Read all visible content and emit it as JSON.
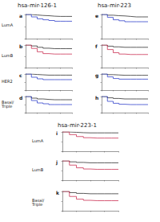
{
  "headers": [
    "hsa-mir-126-1",
    "hsa-mir-223",
    "hsa-mir-223-1"
  ],
  "row_labels": [
    "LumA",
    "LumB",
    "HER2",
    "Basal/ Triple",
    "LumA",
    "LumB",
    "Basal/Triple"
  ],
  "chart_data": [
    {
      "type": "line",
      "title": "a",
      "x": [
        0,
        25,
        50,
        75,
        100,
        125,
        150,
        175,
        200
      ],
      "xlim": [
        0,
        200
      ],
      "xticks": [
        0,
        50,
        100,
        150,
        200
      ],
      "ylim": [
        0,
        1
      ],
      "yticks": [
        0,
        0.5,
        1
      ],
      "tick_labels": false,
      "line_style": "step",
      "series": [
        {
          "color": "#333333",
          "values": [
            1,
            0.98,
            0.96,
            0.95,
            0.93,
            0.92,
            0.92,
            0.92,
            0.92
          ]
        },
        {
          "color": "#3344cc",
          "values": [
            1,
            0.9,
            0.82,
            0.78,
            0.75,
            0.72,
            0.72,
            0.72,
            0.72
          ]
        }
      ]
    },
    {
      "type": "line",
      "title": "b",
      "x": [
        0,
        25,
        50,
        75,
        100,
        125,
        150,
        175,
        200
      ],
      "xlim": [
        0,
        200
      ],
      "xticks": [
        0,
        50,
        100,
        150,
        200
      ],
      "ylim": [
        0,
        1
      ],
      "yticks": [
        0,
        0.5,
        1
      ],
      "tick_labels": false,
      "line_style": "step",
      "series": [
        {
          "color": "#333333",
          "values": [
            1,
            0.96,
            0.9,
            0.86,
            0.84,
            0.84,
            0.84,
            0.84,
            0.84
          ]
        },
        {
          "color": "#cc3355",
          "values": [
            1,
            0.85,
            0.7,
            0.62,
            0.6,
            0.6,
            0.6,
            0.6,
            0.6
          ]
        }
      ]
    },
    {
      "type": "line",
      "title": "c",
      "x": [
        0,
        25,
        50,
        75,
        100,
        125,
        150,
        175,
        200
      ],
      "xlim": [
        0,
        200
      ],
      "xticks": [
        0,
        50,
        100,
        150,
        200
      ],
      "ylim": [
        0,
        1
      ],
      "yticks": [
        0,
        0.5,
        1
      ],
      "tick_labels": false,
      "line_style": "step",
      "series": [
        {
          "color": "#333333",
          "values": [
            1,
            0.97,
            0.95,
            0.93,
            0.93,
            0.93,
            0.93,
            0.93,
            0.93
          ]
        },
        {
          "color": "#3344cc",
          "values": [
            1,
            0.8,
            0.7,
            0.65,
            0.65,
            0.65,
            0.65,
            0.65,
            0.65
          ]
        }
      ]
    },
    {
      "type": "line",
      "title": "d",
      "x": [
        0,
        25,
        50,
        75,
        100,
        125,
        150,
        175,
        200
      ],
      "xlim": [
        0,
        200
      ],
      "xticks": [
        0,
        50,
        100,
        150,
        200
      ],
      "ylim": [
        0,
        1
      ],
      "yticks": [
        0,
        0.5,
        1
      ],
      "tick_labels": false,
      "line_style": "step",
      "series": [
        {
          "color": "#333333",
          "values": [
            1,
            0.9,
            0.85,
            0.82,
            0.8,
            0.8,
            0.8,
            0.8,
            0.8
          ]
        },
        {
          "color": "#3344cc",
          "values": [
            1,
            0.75,
            0.6,
            0.55,
            0.5,
            0.5,
            0.5,
            0.5,
            0.5
          ]
        }
      ]
    },
    {
      "type": "line",
      "title": "e",
      "x": [
        0,
        25,
        50,
        75,
        100,
        125,
        150,
        175,
        200
      ],
      "xlim": [
        0,
        200
      ],
      "xticks": [
        0,
        50,
        100,
        150,
        200
      ],
      "ylim": [
        0,
        1
      ],
      "yticks": [
        0,
        0.5,
        1
      ],
      "tick_labels": false,
      "line_style": "step",
      "series": [
        {
          "color": "#333333",
          "values": [
            1,
            0.97,
            0.95,
            0.94,
            0.92,
            0.9,
            0.9,
            0.9,
            0.9
          ]
        },
        {
          "color": "#3344cc",
          "values": [
            1,
            0.88,
            0.78,
            0.74,
            0.7,
            0.7,
            0.7,
            0.7,
            0.7
          ]
        }
      ]
    },
    {
      "type": "line",
      "title": "f",
      "x": [
        0,
        25,
        50,
        75,
        100,
        125,
        150,
        175,
        200
      ],
      "xlim": [
        0,
        200
      ],
      "xticks": [
        0,
        50,
        100,
        150,
        200
      ],
      "ylim": [
        0,
        1
      ],
      "yticks": [
        0,
        0.5,
        1
      ],
      "tick_labels": false,
      "line_style": "step",
      "series": [
        {
          "color": "#333333",
          "values": [
            1,
            0.95,
            0.92,
            0.9,
            0.9,
            0.9,
            0.9,
            0.9,
            0.9
          ]
        },
        {
          "color": "#cc3355",
          "values": [
            1,
            0.8,
            0.66,
            0.6,
            0.58,
            0.58,
            0.58,
            0.58,
            0.58
          ]
        }
      ]
    },
    {
      "type": "line",
      "title": "g",
      "x": [
        0,
        25,
        50,
        75,
        100,
        125,
        150,
        175,
        200
      ],
      "xlim": [
        0,
        200
      ],
      "xticks": [
        0,
        50,
        100,
        150,
        200
      ],
      "ylim": [
        0,
        1
      ],
      "yticks": [
        0,
        0.5,
        1
      ],
      "tick_labels": false,
      "line_style": "step",
      "series": [
        {
          "color": "#333333",
          "values": [
            1,
            0.96,
            0.94,
            0.92,
            0.92,
            0.92,
            0.92,
            0.92,
            0.92
          ]
        },
        {
          "color": "#3344cc",
          "values": [
            1,
            0.82,
            0.72,
            0.68,
            0.68,
            0.68,
            0.68,
            0.68,
            0.68
          ]
        }
      ]
    },
    {
      "type": "line",
      "title": "h",
      "x": [
        0,
        25,
        50,
        75,
        100,
        125,
        150,
        175,
        200
      ],
      "xlim": [
        0,
        200
      ],
      "xticks": [
        0,
        50,
        100,
        150,
        200
      ],
      "ylim": [
        0,
        1
      ],
      "yticks": [
        0,
        0.5,
        1
      ],
      "tick_labels": false,
      "line_style": "step",
      "series": [
        {
          "color": "#333333",
          "values": [
            1,
            0.92,
            0.88,
            0.85,
            0.85,
            0.85,
            0.85,
            0.85,
            0.85
          ]
        },
        {
          "color": "#3344cc",
          "values": [
            1,
            0.7,
            0.58,
            0.52,
            0.5,
            0.5,
            0.5,
            0.5,
            0.5
          ]
        }
      ]
    },
    {
      "type": "line",
      "title": "i",
      "x": [
        0,
        25,
        50,
        75,
        100,
        125,
        150,
        175,
        200
      ],
      "xlim": [
        0,
        200
      ],
      "xticks": [
        0,
        50,
        100,
        150,
        200
      ],
      "ylim": [
        0,
        1
      ],
      "yticks": [
        0,
        0.5,
        1
      ],
      "tick_labels": false,
      "line_style": "step",
      "series": [
        {
          "color": "#333333",
          "values": [
            1,
            0.98,
            0.96,
            0.95,
            0.95,
            0.95,
            0.95,
            0.95,
            0.95
          ]
        },
        {
          "color": "#cc3355",
          "values": [
            1,
            0.86,
            0.76,
            0.7,
            0.68,
            0.68,
            0.68,
            0.68,
            0.68
          ]
        }
      ]
    },
    {
      "type": "line",
      "title": "j",
      "x": [
        0,
        25,
        50,
        75,
        100,
        125,
        150,
        175,
        200
      ],
      "xlim": [
        0,
        200
      ],
      "xticks": [
        0,
        50,
        100,
        150,
        200
      ],
      "ylim": [
        0,
        1
      ],
      "yticks": [
        0,
        0.5,
        1
      ],
      "tick_labels": false,
      "line_style": "step",
      "series": [
        {
          "color": "#333333",
          "values": [
            1,
            0.95,
            0.92,
            0.9,
            0.9,
            0.9,
            0.9,
            0.9,
            0.9
          ]
        },
        {
          "color": "#cc3355",
          "values": [
            1,
            0.78,
            0.64,
            0.58,
            0.56,
            0.56,
            0.56,
            0.56,
            0.56
          ]
        }
      ]
    },
    {
      "type": "line",
      "title": "k",
      "x": [
        0,
        25,
        50,
        75,
        100,
        125,
        150,
        175,
        200
      ],
      "xlim": [
        0,
        200
      ],
      "xticks": [
        0,
        50,
        100,
        150,
        200
      ],
      "ylim": [
        0,
        1
      ],
      "yticks": [
        0,
        0.5,
        1
      ],
      "tick_labels": false,
      "line_style": "step",
      "series": [
        {
          "color": "#333333",
          "values": [
            1,
            0.94,
            0.9,
            0.88,
            0.88,
            0.88,
            0.88,
            0.88,
            0.88
          ]
        },
        {
          "color": "#cc3355",
          "values": [
            1,
            0.74,
            0.6,
            0.54,
            0.52,
            0.52,
            0.52,
            0.52,
            0.52
          ]
        }
      ]
    }
  ]
}
